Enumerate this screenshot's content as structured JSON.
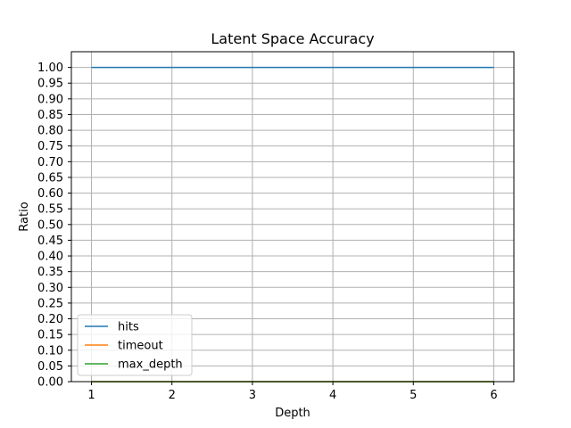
{
  "chart_data": {
    "type": "line",
    "title": "Latent Space Accuracy",
    "xlabel": "Depth",
    "ylabel": "Ratio",
    "xlim": [
      0.75,
      6.25
    ],
    "ylim": [
      0,
      1.05
    ],
    "x_ticks": [
      1,
      2,
      3,
      4,
      5,
      6
    ],
    "y_ticks": [
      "0.00",
      "0.05",
      "0.10",
      "0.15",
      "0.20",
      "0.25",
      "0.30",
      "0.35",
      "0.40",
      "0.45",
      "0.50",
      "0.55",
      "0.60",
      "0.65",
      "0.70",
      "0.75",
      "0.80",
      "0.85",
      "0.90",
      "0.95",
      "1.00"
    ],
    "grid": true,
    "legend_position": "lower-left",
    "x": [
      1,
      2,
      3,
      4,
      5,
      6
    ],
    "series": [
      {
        "name": "hits",
        "color": "#1f77b4",
        "values": [
          1,
          1,
          1,
          1,
          1,
          1
        ]
      },
      {
        "name": "timeout",
        "color": "#ff7f0e",
        "values": [
          0,
          0,
          0,
          0,
          0,
          0
        ]
      },
      {
        "name": "max_depth",
        "color": "#2ca02c",
        "values": [
          0,
          0,
          0,
          0,
          0,
          0
        ]
      }
    ]
  }
}
